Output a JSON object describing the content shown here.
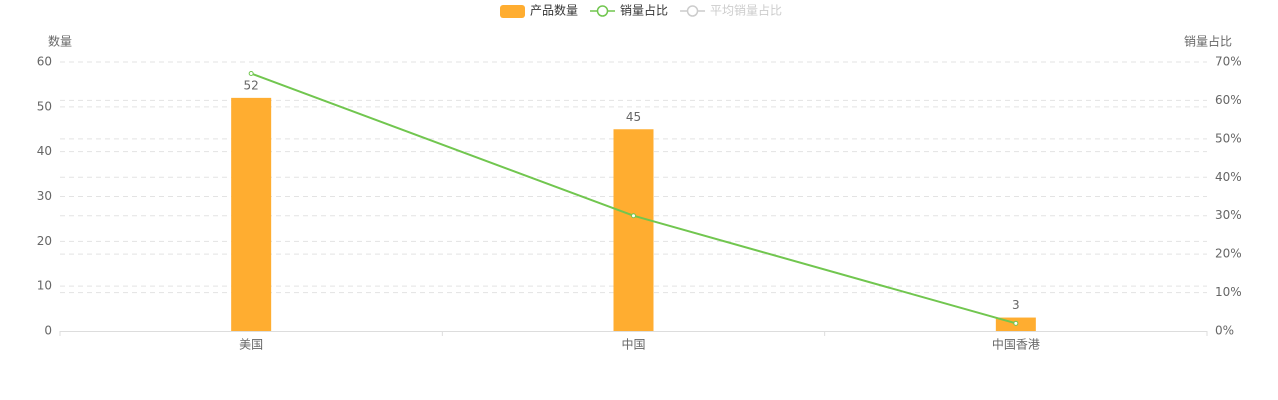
{
  "chart_data": {
    "type": "bar_line",
    "y_axis_label": "数量",
    "y2_axis_label": "销量占比",
    "categories": [
      "美国",
      "中国",
      "中国香港"
    ],
    "series": [
      {
        "name": "产品数量",
        "type": "bar",
        "color": "#ffad30",
        "values": [
          52,
          45,
          3
        ]
      },
      {
        "name": "销量占比",
        "type": "line",
        "color": "#71c64f",
        "axis": "y2",
        "values": [
          67,
          30,
          2
        ]
      },
      {
        "name": "平均销量占比",
        "type": "line",
        "color": "#cccccc",
        "axis": "y2",
        "hidden": true,
        "values": [
          null,
          null,
          null
        ]
      }
    ],
    "ylim": [
      0,
      60
    ],
    "yticks": [
      0,
      10,
      20,
      30,
      40,
      50,
      60
    ],
    "y2lim": [
      0,
      70
    ],
    "y2ticks": [
      {
        "value": 0,
        "label": "0%"
      },
      {
        "value": 10,
        "label": "10%"
      },
      {
        "value": 20,
        "label": "20%"
      },
      {
        "value": 30,
        "label": "30%"
      },
      {
        "value": 40,
        "label": "40%"
      },
      {
        "value": 50,
        "label": "50%"
      },
      {
        "value": 60,
        "label": "60%"
      },
      {
        "value": 70,
        "label": "70%"
      }
    ],
    "grid": true,
    "legend": "top"
  }
}
